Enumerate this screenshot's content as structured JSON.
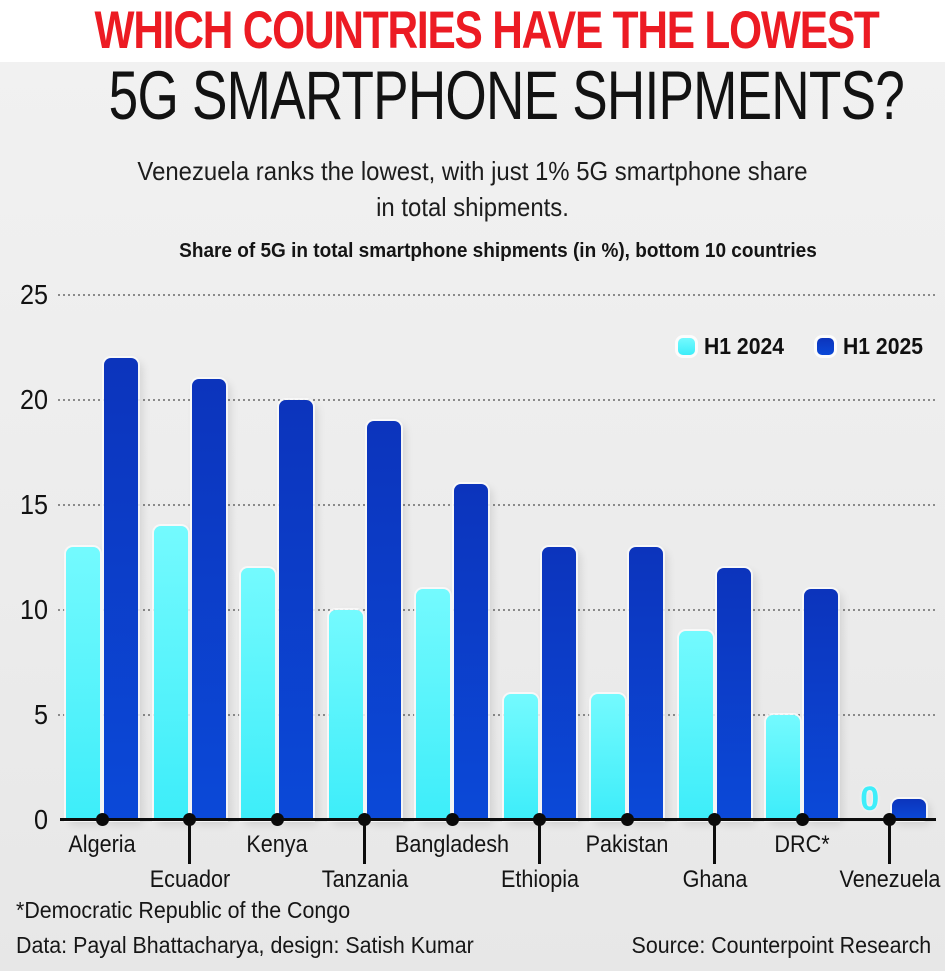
{
  "page": {
    "kicker": "WHICH COUNTRIES HAVE THE LOWEST",
    "headline": "5G SMARTPHONE SHIPMENTS?",
    "subtitle_line1": "Venezuela ranks the lowest, with just 1% 5G smartphone share",
    "subtitle_line2": "in total shipments."
  },
  "chart_data": {
    "type": "bar",
    "title": "Share of 5G in total smartphone shipments (in %), bottom 10 countries",
    "categories": [
      "Algeria",
      "Ecuador",
      "Kenya",
      "Tanzania",
      "Bangladesh",
      "Ethiopia",
      "Pakistan",
      "Ghana",
      "DRC*",
      "Venezuela"
    ],
    "series": [
      {
        "name": "H1 2024",
        "values": [
          13,
          14,
          12,
          10,
          11,
          6,
          6,
          9,
          5,
          0
        ]
      },
      {
        "name": "H1 2025",
        "values": [
          22,
          21,
          20,
          19,
          16,
          13,
          13,
          12,
          11,
          1
        ]
      }
    ],
    "xlabel": "",
    "ylabel": "",
    "ylim": [
      0,
      25
    ],
    "yticks": [
      0,
      5,
      10,
      15,
      20,
      25
    ],
    "grid": "horizontal dotted",
    "legend_position": "top-right",
    "zero_value_label": "0"
  },
  "colors": {
    "accent_red": "#EC1B23",
    "h1_2024_top": "#74FAFE",
    "h1_2024_bottom": "#3DEDF9",
    "h1_2025_top": "#0C34BC",
    "h1_2025_bottom": "#0B49D8",
    "zero_label": "#3FEEFA",
    "background": "#EDEDED",
    "gridline": "#8A8A8A",
    "text": "#141414"
  },
  "footer": {
    "footnote": "*Democratic Republic of the Congo",
    "credit": "Data: Payal Bhattacharya, design: Satish Kumar",
    "source": "Source: Counterpoint Research"
  }
}
